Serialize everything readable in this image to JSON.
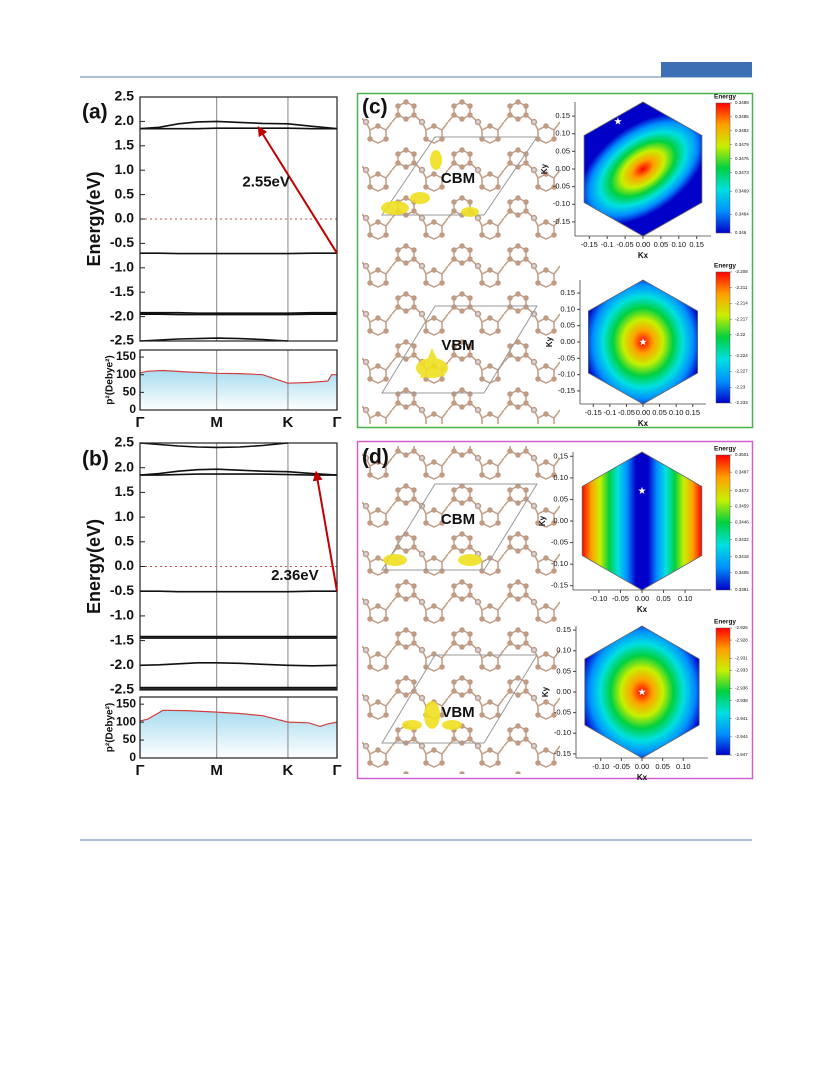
{
  "figure": {
    "panels": [
      "(a)",
      "(b)",
      "(c)",
      "(d)"
    ],
    "structure_labels": [
      "CBM",
      "VBM",
      "CBM",
      "VBM"
    ]
  },
  "chart_data": [
    {
      "type": "band",
      "ylabel": "Energy(eV)",
      "ylim": [
        -2.5,
        2.5
      ],
      "yticks": [
        {
          "value": 2.5,
          "label": "2.5"
        },
        {
          "value": 2,
          "label": "2.0"
        },
        {
          "value": 1.5,
          "label": "1.5"
        },
        {
          "value": 1,
          "label": "1.0"
        },
        {
          "value": 0.5,
          "label": "0.5"
        },
        {
          "value": 0,
          "label": "0.0"
        },
        {
          "value": -0.5,
          "label": "-0.5"
        },
        {
          "value": -1,
          "label": "-1.0"
        },
        {
          "value": -1.5,
          "label": "-1.5"
        },
        {
          "value": -2,
          "label": "-2.0"
        },
        {
          "value": -2.5,
          "label": "-2.5"
        }
      ],
      "xlim": [
        0,
        2.57
      ],
      "vlines": [
        1,
        1.93
      ],
      "hline": 0,
      "hline_color": "#c0504d",
      "x": [
        0,
        0.25,
        0.5,
        0.75,
        1,
        1.3,
        1.6,
        1.93,
        2.25,
        2.57
      ],
      "series": [
        {
          "color": "#111",
          "values": [
            1.85,
            1.88,
            1.95,
            1.99,
            2.0,
            1.98,
            1.96,
            1.95,
            1.9,
            1.85
          ]
        },
        {
          "color": "#111",
          "values": [
            1.85,
            1.85,
            1.85,
            1.85,
            1.86,
            1.86,
            1.86,
            1.86,
            1.85,
            1.85
          ]
        },
        {
          "color": "#111",
          "values": [
            -0.7,
            -0.7,
            -0.71,
            -0.71,
            -0.71,
            -0.71,
            -0.71,
            -0.71,
            -0.7,
            -0.7
          ]
        },
        {
          "color": "#111",
          "values": [
            -1.92,
            -1.92,
            -1.92,
            -1.93,
            -1.93,
            -1.93,
            -1.93,
            -1.93,
            -1.92,
            -1.92
          ]
        },
        {
          "color": "#111",
          "values": [
            -1.95,
            -1.95,
            -1.96,
            -1.96,
            -1.96,
            -1.96,
            -1.96,
            -1.96,
            -1.95,
            -1.95
          ]
        },
        {
          "color": "#111",
          "values": [
            -2.5,
            -2.48,
            -2.46,
            -2.45,
            -2.44,
            -2.45,
            -2.47,
            -2.5,
            null,
            null
          ]
        }
      ],
      "arrow": {
        "from": [
          2.57,
          -0.7
        ],
        "to": [
          1.55,
          1.87
        ],
        "label": "2.55eV",
        "color": "#c00000"
      }
    },
    {
      "type": "dipole",
      "ylabel": "p²(Debye²)",
      "ylim": [
        0,
        170
      ],
      "yticks": [
        0,
        50,
        100,
        150
      ],
      "xlim": [
        0,
        2.57
      ],
      "xticks": [
        {
          "value": 0,
          "label": "Γ"
        },
        {
          "value": 1,
          "label": "M"
        },
        {
          "value": 1.93,
          "label": "K"
        },
        {
          "value": 2.57,
          "label": "Γ"
        }
      ],
      "color": "#d04040",
      "x": [
        0,
        0.1,
        0.3,
        0.6,
        1,
        1.3,
        1.6,
        1.93,
        2.2,
        2.45,
        2.5,
        2.57
      ],
      "values": [
        105,
        110,
        112,
        108,
        104,
        103,
        100,
        76,
        78,
        82,
        100,
        100
      ]
    },
    {
      "type": "band",
      "ylabel": "Energy(eV)",
      "ylim": [
        -2.5,
        2.5
      ],
      "yticks": [
        {
          "value": 2.5,
          "label": "2.5"
        },
        {
          "value": 2,
          "label": "2.0"
        },
        {
          "value": 1.5,
          "label": "1.5"
        },
        {
          "value": 1,
          "label": "1.0"
        },
        {
          "value": 0.5,
          "label": "0.5"
        },
        {
          "value": 0,
          "label": "0.0"
        },
        {
          "value": -0.5,
          "label": "-0.5"
        },
        {
          "value": -1,
          "label": "-1.0"
        },
        {
          "value": -1.5,
          "label": "-1.5"
        },
        {
          "value": -2,
          "label": "-2.0"
        },
        {
          "value": -2.5,
          "label": "-2.5"
        }
      ],
      "xlim": [
        0,
        2.57
      ],
      "vlines": [
        1,
        1.93
      ],
      "hline": 0,
      "hline_color": "#c0504d",
      "x": [
        0,
        0.25,
        0.5,
        0.75,
        1,
        1.3,
        1.6,
        1.93,
        2.25,
        2.57
      ],
      "series": [
        {
          "color": "#111",
          "values": [
            2.5,
            2.47,
            2.44,
            2.42,
            2.41,
            2.42,
            2.45,
            2.5,
            null,
            null
          ]
        },
        {
          "color": "#111",
          "values": [
            1.85,
            1.88,
            1.93,
            1.96,
            1.97,
            1.95,
            1.93,
            1.92,
            1.88,
            1.85
          ]
        },
        {
          "color": "#111",
          "values": [
            1.85,
            1.85,
            1.86,
            1.87,
            1.87,
            1.87,
            1.87,
            1.86,
            1.85,
            1.85
          ]
        },
        {
          "color": "#111",
          "values": [
            -0.5,
            -0.5,
            -0.51,
            -0.51,
            -0.51,
            -0.51,
            -0.51,
            -0.51,
            -0.5,
            -0.5
          ]
        },
        {
          "color": "#111",
          "values": [
            -1.42,
            -1.42,
            -1.42,
            -1.42,
            -1.42,
            -1.42,
            -1.42,
            -1.42,
            -1.42,
            -1.42
          ]
        },
        {
          "color": "#111",
          "values": [
            -1.45,
            -1.45,
            -1.45,
            -1.45,
            -1.45,
            -1.45,
            -1.45,
            -1.45,
            -1.45,
            -1.45
          ]
        },
        {
          "color": "#111",
          "values": [
            -2.0,
            -1.99,
            -1.97,
            -1.95,
            -1.95,
            -1.96,
            -1.98,
            -2.0,
            -2.01,
            -2.0
          ]
        },
        {
          "color": "#111",
          "values": [
            -2.45,
            -2.45,
            -2.45,
            -2.45,
            -2.45,
            -2.45,
            -2.45,
            -2.45,
            -2.45,
            -2.45
          ]
        },
        {
          "color": "#111",
          "values": [
            -2.48,
            -2.48,
            -2.48,
            -2.48,
            -2.48,
            -2.48,
            -2.48,
            -2.48,
            -2.48,
            -2.48
          ]
        }
      ],
      "arrow": {
        "from": [
          2.57,
          -0.5
        ],
        "to": [
          2.3,
          1.9
        ],
        "label": "2.36eV",
        "color": "#c00000"
      }
    },
    {
      "type": "dipole",
      "ylabel": "p²(Debye²)",
      "ylim": [
        0,
        170
      ],
      "yticks": [
        0,
        50,
        100,
        150
      ],
      "xlim": [
        0,
        2.57
      ],
      "xticks": [
        {
          "value": 0,
          "label": "Γ"
        },
        {
          "value": 1,
          "label": "M"
        },
        {
          "value": 1.93,
          "label": "K"
        },
        {
          "value": 2.57,
          "label": "Γ"
        }
      ],
      "color": "#d04040",
      "x": [
        0,
        0.1,
        0.3,
        0.6,
        1,
        1.3,
        1.6,
        1.93,
        2.2,
        2.35,
        2.45,
        2.57
      ],
      "values": [
        103,
        108,
        133,
        132,
        128,
        124,
        118,
        100,
        98,
        88,
        95,
        100
      ]
    },
    {
      "type": "contour",
      "pattern": "blob",
      "xlabel": "Kx",
      "ylabel": "Ky",
      "colorbar_title": "Energy",
      "xlim": [
        -0.19,
        0.19
      ],
      "ylim": [
        -0.19,
        0.19
      ],
      "xticks": [
        -0.15,
        -0.1,
        -0.05,
        {
          "value": 0,
          "label": "0.00"
        },
        0.05,
        {
          "value": 0.1,
          "label": "0.10"
        },
        0.15
      ],
      "yticks": [
        0.15,
        {
          "value": 0.1,
          "label": "0.10"
        },
        0.05,
        {
          "value": 0,
          "label": "0.00"
        },
        -0.05,
        {
          "value": -0.1,
          "label": "-0.10"
        },
        -0.15
      ],
      "clim": [
        0.346,
        0.3488
      ],
      "colorbar_ticks": [
        0.3488,
        0.3485,
        0.3482,
        0.3479,
        0.3476,
        0.3473,
        0.3469,
        0.3464,
        0.346
      ],
      "colorscale": [
        "#0000c8",
        "#0090ff",
        "#00e0e0",
        "#00d040",
        "#c8f000",
        "#ffa000",
        "#ff0000"
      ],
      "star": [
        -0.07,
        0.135
      ]
    },
    {
      "type": "contour",
      "pattern": "radial",
      "xlabel": "Kx",
      "ylabel": "Ky",
      "colorbar_title": "Energy",
      "xlim": [
        -0.19,
        0.19
      ],
      "ylim": [
        -0.19,
        0.19
      ],
      "xticks": [
        -0.15,
        -0.1,
        -0.05,
        {
          "value": 0,
          "label": "0.00"
        },
        0.05,
        {
          "value": 0.1,
          "label": "0.10"
        },
        0.15
      ],
      "yticks": [
        0.15,
        {
          "value": 0.1,
          "label": "0.10"
        },
        0.05,
        {
          "value": 0,
          "label": "0.00"
        },
        -0.05,
        {
          "value": -0.1,
          "label": "-0.10"
        },
        -0.15
      ],
      "clim": [
        -2.233,
        -2.208
      ],
      "colorbar_ticks": [
        -2.208,
        -2.211,
        -2.214,
        -2.217,
        -2.22,
        -2.224,
        -2.227,
        -2.23,
        -2.233
      ],
      "colorscale": [
        "#0000c8",
        "#0090ff",
        "#00e0e0",
        "#00d040",
        "#c8f000",
        "#ffa000",
        "#ff0000"
      ],
      "star": [
        0,
        0
      ]
    },
    {
      "type": "contour",
      "pattern": "band",
      "xlabel": "Kx",
      "ylabel": "Ky",
      "colorbar_title": "Energy",
      "xlim": [
        -0.16,
        0.16
      ],
      "ylim": [
        -0.16,
        0.16
      ],
      "xticks": [
        {
          "value": -0.1,
          "label": "-0.10"
        },
        -0.05,
        {
          "value": 0,
          "label": "0.00"
        },
        0.05,
        {
          "value": 0.1,
          "label": "0.10"
        }
      ],
      "yticks": [
        0.15,
        {
          "value": 0.1,
          "label": "0.10"
        },
        0.05,
        {
          "value": 0,
          "label": "0.00"
        },
        -0.05,
        {
          "value": -0.1,
          "label": "-0.10"
        },
        -0.15
      ],
      "clim": [
        0.3391,
        0.3501
      ],
      "colorbar_ticks": [
        0.3501,
        0.3487,
        0.3472,
        0.3459,
        0.3446,
        0.3432,
        0.3418,
        0.3405,
        0.3391
      ],
      "colorscale": [
        "#0000c8",
        "#0090ff",
        "#00e0e0",
        "#00d040",
        "#c8f000",
        "#ffa000",
        "#ff0000"
      ],
      "star": [
        0,
        0.07
      ]
    },
    {
      "type": "contour",
      "pattern": "radial",
      "xlabel": "Kx",
      "ylabel": "Ky",
      "colorbar_title": "Energy",
      "xlim": [
        -0.16,
        0.16
      ],
      "ylim": [
        -0.16,
        0.16
      ],
      "xticks": [
        {
          "value": -0.1,
          "label": "-0.10"
        },
        -0.05,
        {
          "value": 0,
          "label": "0.00"
        },
        0.05,
        {
          "value": 0.1,
          "label": "0.10"
        }
      ],
      "yticks": [
        0.15,
        {
          "value": 0.1,
          "label": "0.10"
        },
        0.05,
        {
          "value": 0,
          "label": "0.00"
        },
        -0.05,
        {
          "value": -0.1,
          "label": "-0.10"
        },
        -0.15
      ],
      "clim": [
        -2.947,
        -2.926
      ],
      "colorbar_ticks": [
        -2.926,
        -2.928,
        -2.931,
        -2.933,
        -2.936,
        -2.938,
        -2.941,
        -2.944,
        -2.947
      ],
      "colorscale": [
        "#0000c8",
        "#0090ff",
        "#00e0e0",
        "#00d040",
        "#c8f000",
        "#ffa000",
        "#ff0000"
      ],
      "star": [
        0,
        0
      ]
    }
  ]
}
